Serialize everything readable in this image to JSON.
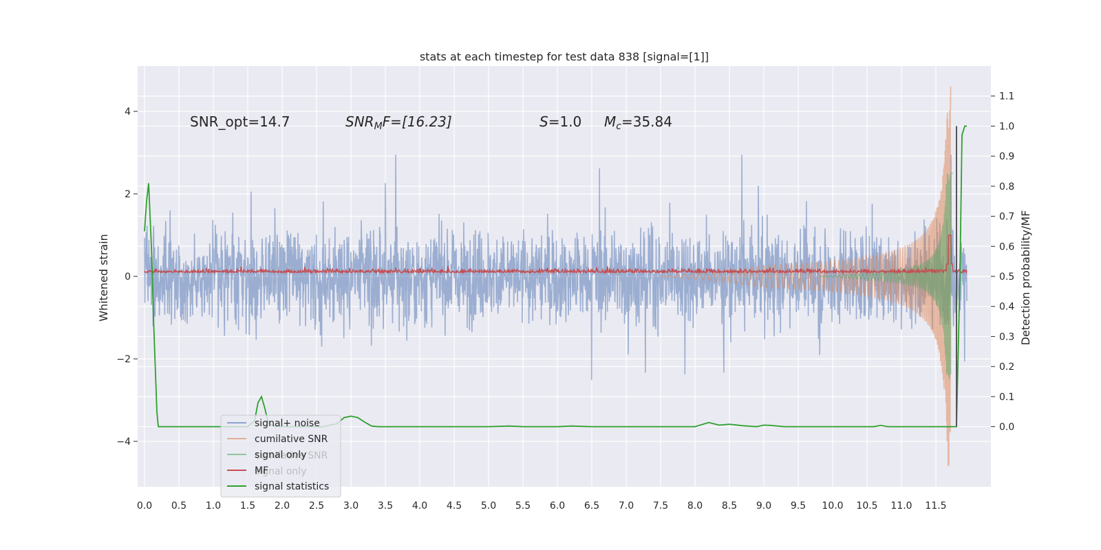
{
  "chart_data": {
    "type": "line",
    "title": "stats at each timestep for test data 838 [signal=[1]]",
    "xlabel": "",
    "ylabel": "Whitened strain",
    "ylabel_right": "Detection probability/MF",
    "xlim": [
      -0.1,
      12.3
    ],
    "ylim": [
      -5.1,
      5.1
    ],
    "ylim_right": [
      -0.2,
      1.2
    ],
    "x_ticks": [
      0.0,
      0.5,
      1.0,
      1.5,
      2.0,
      2.5,
      3.0,
      3.5,
      4.0,
      4.5,
      5.0,
      5.5,
      6.0,
      6.5,
      7.0,
      7.5,
      8.0,
      8.5,
      9.0,
      9.5,
      10.0,
      10.5,
      11.0,
      11.5
    ],
    "x_tick_labels": [
      "0.0",
      "0.5",
      "1.0",
      "1.5",
      "2.0",
      "2.5",
      "3.0",
      "3.5",
      "4.0",
      "4.5",
      "5.0",
      "5.5",
      "6.0",
      "6.5",
      "7.0",
      "7.5",
      "8.0",
      "8.5",
      "9.0",
      "9.5",
      "10.0",
      "10.5",
      "11.0",
      "11.5"
    ],
    "y_ticks": [
      -4,
      -2,
      0,
      2,
      4
    ],
    "y_tick_labels": [
      "−4",
      "−2",
      "0",
      "2",
      "4"
    ],
    "y_right_ticks": [
      0.0,
      0.1,
      0.2,
      0.3,
      0.4,
      0.5,
      0.6,
      0.7,
      0.8,
      0.9,
      1.0,
      1.1
    ],
    "y_right_tick_labels": [
      "0.0",
      "0.1",
      "0.2",
      "0.3",
      "0.4",
      "0.5",
      "0.6",
      "0.7",
      "0.8",
      "0.9",
      "1.0",
      "1.1"
    ],
    "grid": true,
    "legend_position": "lower-left",
    "annotations": {
      "snr_opt": "SNR_opt=14.7",
      "snr_mf_main": "SNR",
      "snr_mf_sub": "M",
      "snr_mf_rest": "F=[16.23]",
      "s_var": "S",
      "s_rest": "=1.0",
      "mc_var": "M",
      "mc_sub": "c",
      "mc_rest": "=35.84"
    },
    "legend": [
      {
        "label": "signal+ noise",
        "color": "#4c72b0"
      },
      {
        "label": "cumilative SNR",
        "color": "#dd8452"
      },
      {
        "label": "signal only",
        "color": "#55a868"
      },
      {
        "label": "MF",
        "color": "#c44e52"
      },
      {
        "label": "signal statistics",
        "color": "#2ca02c"
      }
    ],
    "legend_ghost": [
      "cumilative SNR",
      "signal only"
    ],
    "series": [
      {
        "name": "signal+ noise",
        "axis": "left",
        "color": "#4c72b0",
        "opacity": 0.5,
        "description": "whitened strain noise, envelope approx ±1.4 with peaks to ±2.9 from t=0.0 to t=11.95"
      },
      {
        "name": "cumilative SNR",
        "axis": "left",
        "color": "#dd8452",
        "opacity": 0.5,
        "description": "chirp, amplitude grows from ~0 at t=7.5 to ~4.6 at t=11.65"
      },
      {
        "name": "signal only",
        "axis": "left",
        "color": "#55a868",
        "opacity": 0.5,
        "description": "chirp, amplitude ~0.3 at t=10 rising to ~2.5 at t=11.7"
      },
      {
        "name": "MF",
        "axis": "left",
        "color": "#c44e52",
        "description": "near 0.1 with small noise, spike to 1.0 at t=11.7"
      },
      {
        "name": "signal statistics",
        "axis": "right",
        "color": "#2ca02c",
        "x": [
          0.0,
          0.03,
          0.06,
          0.1,
          0.14,
          0.18,
          0.2,
          0.3,
          1.2,
          1.5,
          1.6,
          1.65,
          1.7,
          1.75,
          1.8,
          1.9,
          2.6,
          2.8,
          2.9,
          3.0,
          3.1,
          3.2,
          3.3,
          3.4,
          3.5,
          5.0,
          5.3,
          5.5,
          6.0,
          6.2,
          6.5,
          7.8,
          8.0,
          8.2,
          8.35,
          8.5,
          8.7,
          8.9,
          9.0,
          9.1,
          9.3,
          10.6,
          10.7,
          10.8,
          11.0,
          11.8,
          11.85,
          11.88,
          11.92,
          11.95
        ],
        "y": [
          0.65,
          0.75,
          0.81,
          0.6,
          0.3,
          0.05,
          0.0,
          0.0,
          0.0,
          0.0,
          0.02,
          0.08,
          0.1,
          0.06,
          0.01,
          0.0,
          0.0,
          0.01,
          0.03,
          0.035,
          0.03,
          0.015,
          0.002,
          0.0,
          0.0,
          0.0,
          0.002,
          0.0,
          0.0,
          0.002,
          0.0,
          0.0,
          0.0,
          0.014,
          0.005,
          0.008,
          0.003,
          0.0,
          0.005,
          0.004,
          0.0,
          0.0,
          0.004,
          0.0,
          0.0,
          0.0,
          0.5,
          0.97,
          1.0,
          1.0
        ]
      },
      {
        "name": "vertical marker",
        "axis": "right",
        "color": "#555555",
        "x": [
          11.8,
          11.8
        ],
        "y": [
          0.0,
          1.0
        ]
      }
    ]
  }
}
